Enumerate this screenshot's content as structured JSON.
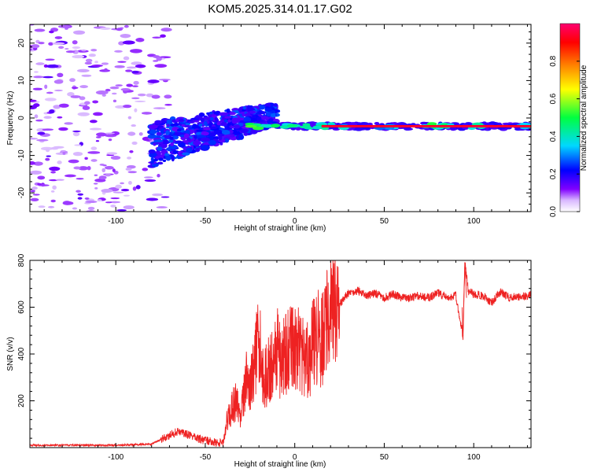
{
  "figure_title": "KOM5.2025.314.01.17.G02",
  "chart_data": [
    {
      "type": "heatmap",
      "title": "KOM5.2025.314.01.17.G02",
      "xlabel": "Height of straight line (km)",
      "ylabel": "Frequency (Hz)",
      "xlim": [
        -148,
        132
      ],
      "ylim": [
        -25,
        25
      ],
      "xticks": [
        -100,
        -50,
        0,
        50,
        100
      ],
      "yticks": [
        -20,
        -10,
        0,
        10,
        20
      ],
      "colorbar": {
        "label": "Normalized spectral amplitude",
        "range": [
          0,
          1
        ],
        "ticks": [
          "0.0",
          "0.2",
          "0.4",
          "0.6",
          "0.8"
        ],
        "colormap": [
          "#ffffff",
          "#d9b8ff",
          "#8000ff",
          "#0000ff",
          "#00d8ff",
          "#00ff40",
          "#ffff00",
          "#ff8000",
          "#ff0000",
          "#ff0070"
        ]
      },
      "features": [
        {
          "name": "scattered noise",
          "x_range": [
            -148,
            -80
          ],
          "freq_range": [
            -25,
            25
          ],
          "amplitude": 0.08
        },
        {
          "name": "transition cloud",
          "x_range": [
            -80,
            -10
          ],
          "freq_range": [
            -12,
            4
          ],
          "amplitude": 0.2
        },
        {
          "name": "dominant frequency line",
          "x_range": [
            -10,
            132
          ],
          "frequency": -2.2,
          "amplitude_range": [
            0.3,
            1.0
          ]
        }
      ]
    },
    {
      "type": "line",
      "xlabel": "Height of straight line (km)",
      "ylabel": "SNR (v/v)",
      "xlim": [
        -148,
        132
      ],
      "ylim": [
        0,
        800
      ],
      "xticks": [
        -100,
        -50,
        0,
        50,
        100
      ],
      "yticks": [
        200,
        400,
        600,
        800
      ],
      "series": [
        {
          "name": "SNR",
          "color": "#ee2222",
          "x": [
            -148,
            -120,
            -100,
            -80,
            -72,
            -65,
            -60,
            -55,
            -50,
            -45,
            -40,
            -37,
            -33,
            -30,
            -27,
            -25,
            -22,
            -20,
            -17,
            -15,
            -12,
            -10,
            -8,
            -5,
            -2,
            0,
            3,
            5,
            8,
            10,
            13,
            15,
            18,
            20,
            25,
            30,
            35,
            40,
            45,
            50,
            55,
            60,
            65,
            70,
            75,
            80,
            85,
            90,
            92,
            94,
            95,
            97,
            100,
            105,
            110,
            115,
            120,
            125,
            132
          ],
          "values": [
            10,
            10,
            10,
            15,
            45,
            70,
            55,
            40,
            30,
            25,
            20,
            150,
            200,
            140,
            300,
            250,
            380,
            450,
            290,
            330,
            360,
            420,
            370,
            400,
            420,
            440,
            410,
            390,
            380,
            440,
            470,
            450,
            530,
            560,
            610,
            660,
            670,
            650,
            660,
            640,
            655,
            640,
            640,
            650,
            640,
            660,
            640,
            650,
            560,
            480,
            790,
            670,
            655,
            650,
            620,
            665,
            640,
            645,
            650
          ]
        }
      ]
    }
  ]
}
